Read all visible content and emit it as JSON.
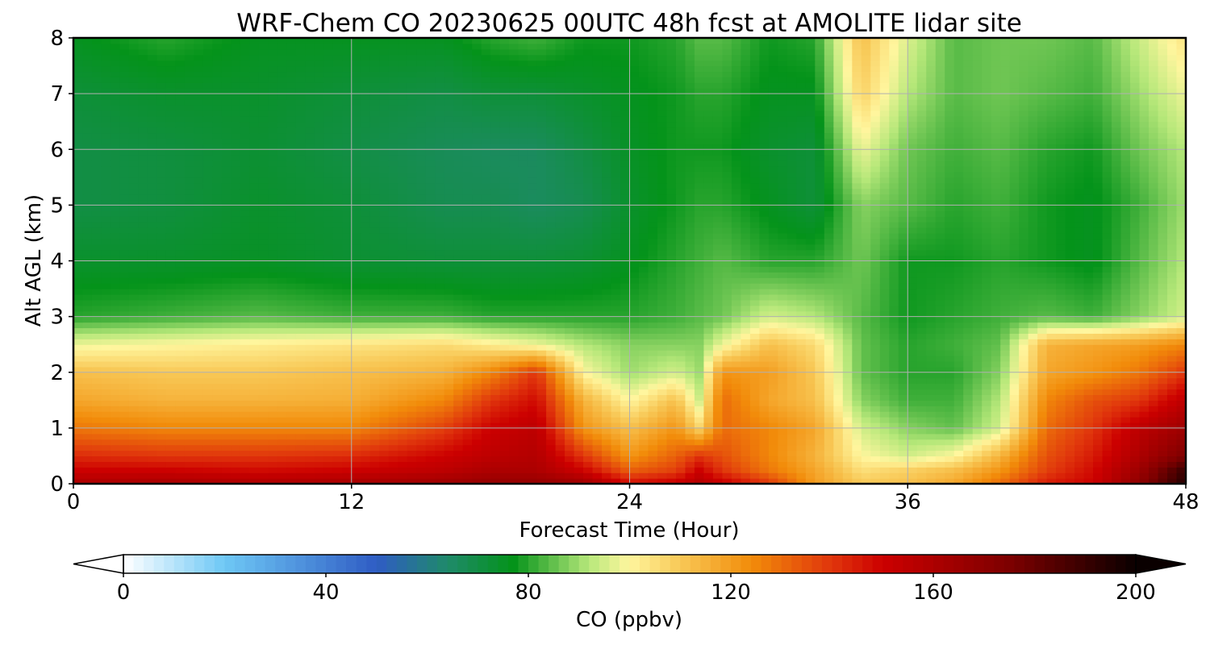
{
  "chart_data": {
    "type": "heatmap",
    "title": "WRF-Chem CO  20230625 00UTC 48h fcst at AMOLITE lidar site",
    "xlabel": "Forecast Time (Hour)",
    "ylabel": "Alt AGL (km)",
    "xlim": [
      0,
      48
    ],
    "ylim": [
      0,
      8
    ],
    "xticks": [
      0,
      12,
      24,
      36,
      48
    ],
    "yticks": [
      0,
      1,
      2,
      3,
      4,
      5,
      6,
      7,
      8
    ],
    "grid": true,
    "colorbar": {
      "label": "CO  (ppbv)",
      "range": [
        0,
        200
      ],
      "ticks": [
        0,
        40,
        80,
        120,
        160,
        200
      ],
      "extend": "both",
      "stops": [
        {
          "v": 0,
          "color": "#ffffff"
        },
        {
          "v": 20,
          "color": "#6ec8f5"
        },
        {
          "v": 50,
          "color": "#2f5cc4"
        },
        {
          "v": 64,
          "color": "#1f8a6a"
        },
        {
          "v": 77,
          "color": "#04931a"
        },
        {
          "v": 92,
          "color": "#b7e87a"
        },
        {
          "v": 100,
          "color": "#fff69e"
        },
        {
          "v": 110,
          "color": "#f8c856"
        },
        {
          "v": 124,
          "color": "#f28c0a"
        },
        {
          "v": 140,
          "color": "#e0350c"
        },
        {
          "v": 150,
          "color": "#cc0000"
        },
        {
          "v": 175,
          "color": "#7d0000"
        },
        {
          "v": 200,
          "color": "#0a0000"
        }
      ]
    },
    "x": [
      0,
      4,
      8,
      12,
      16,
      18,
      20,
      22,
      24,
      26,
      27,
      28,
      30,
      32,
      34,
      36,
      38,
      40,
      42,
      44,
      46,
      48
    ],
    "y": [
      0,
      0.25,
      0.5,
      1,
      1.5,
      2,
      2.5,
      3,
      4,
      5,
      6,
      7,
      8
    ],
    "z": [
      [
        160,
        162,
        160,
        162,
        165,
        168,
        168,
        165,
        148,
        152,
        158,
        152,
        140,
        120,
        110,
        112,
        118,
        130,
        145,
        150,
        170,
        195
      ],
      [
        150,
        150,
        148,
        150,
        155,
        160,
        160,
        150,
        132,
        138,
        150,
        140,
        128,
        118,
        105,
        108,
        112,
        122,
        138,
        148,
        165,
        190
      ],
      [
        142,
        140,
        140,
        142,
        150,
        155,
        158,
        140,
        122,
        132,
        140,
        135,
        125,
        115,
        100,
        95,
        100,
        115,
        135,
        145,
        160,
        175
      ],
      [
        128,
        125,
        125,
        125,
        138,
        150,
        155,
        122,
        112,
        122,
        108,
        130,
        125,
        118,
        95,
        88,
        85,
        95,
        130,
        140,
        155,
        165
      ],
      [
        118,
        115,
        115,
        116,
        125,
        140,
        148,
        115,
        100,
        112,
        95,
        130,
        118,
        112,
        88,
        82,
        82,
        92,
        125,
        135,
        140,
        155
      ],
      [
        112,
        110,
        110,
        112,
        115,
        125,
        140,
        100,
        90,
        95,
        90,
        122,
        120,
        110,
        85,
        80,
        80,
        88,
        118,
        122,
        128,
        140
      ],
      [
        98,
        100,
        102,
        104,
        106,
        102,
        98,
        92,
        88,
        88,
        88,
        98,
        112,
        106,
        85,
        80,
        82,
        85,
        115,
        118,
        120,
        125
      ],
      [
        80,
        82,
        84,
        82,
        82,
        80,
        80,
        80,
        80,
        82,
        84,
        86,
        95,
        92,
        84,
        78,
        80,
        82,
        84,
        82,
        88,
        95
      ],
      [
        74,
        74,
        75,
        73,
        72,
        72,
        72,
        73,
        76,
        80,
        82,
        84,
        80,
        80,
        86,
        78,
        78,
        80,
        78,
        76,
        84,
        92
      ],
      [
        70,
        71,
        74,
        72,
        68,
        68,
        66,
        68,
        74,
        78,
        80,
        80,
        76,
        72,
        88,
        84,
        80,
        82,
        78,
        76,
        82,
        90
      ],
      [
        70,
        71,
        73,
        70,
        67,
        66,
        66,
        70,
        75,
        78,
        78,
        78,
        74,
        72,
        98,
        86,
        82,
        84,
        80,
        78,
        86,
        92
      ],
      [
        72,
        74,
        74,
        72,
        70,
        72,
        72,
        74,
        76,
        78,
        80,
        80,
        76,
        76,
        108,
        92,
        84,
        86,
        84,
        82,
        90,
        98
      ],
      [
        76,
        80,
        76,
        76,
        76,
        80,
        82,
        78,
        78,
        80,
        84,
        84,
        78,
        80,
        112,
        96,
        84,
        86,
        86,
        84,
        94,
        104
      ]
    ]
  }
}
